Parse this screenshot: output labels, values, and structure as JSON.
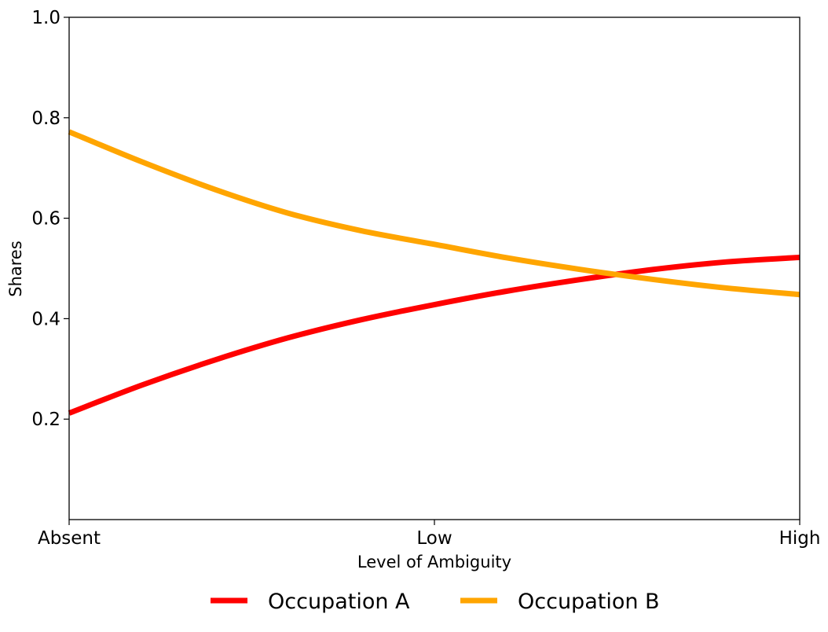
{
  "chart_data": {
    "type": "line",
    "title": "",
    "xlabel": "Level of Ambiguity",
    "ylabel": "Shares",
    "x_ticks": [
      "Absent",
      "Low",
      "High"
    ],
    "x_range": [
      0,
      1
    ],
    "ylim": [
      0,
      1.0
    ],
    "y_ticks": [
      0.2,
      0.4,
      0.6,
      0.8,
      1.0
    ],
    "y_tick_labels": [
      "0.2",
      "0.4",
      "0.6",
      "0.8",
      "1.0"
    ],
    "grid": false,
    "legend_position": "bottom-center",
    "x": [
      0,
      0.1,
      0.2,
      0.3,
      0.4,
      0.5,
      0.6,
      0.7,
      0.8,
      0.9,
      1.0
    ],
    "series": [
      {
        "name": "Occupation A",
        "color": "#ff0000",
        "values": [
          0.212,
          0.268,
          0.318,
          0.362,
          0.398,
          0.428,
          0.455,
          0.478,
          0.498,
          0.513,
          0.522
        ]
      },
      {
        "name": "Occupation B",
        "color": "#ffa500",
        "values": [
          0.772,
          0.712,
          0.657,
          0.61,
          0.575,
          0.548,
          0.521,
          0.498,
          0.478,
          0.461,
          0.448
        ]
      }
    ]
  }
}
